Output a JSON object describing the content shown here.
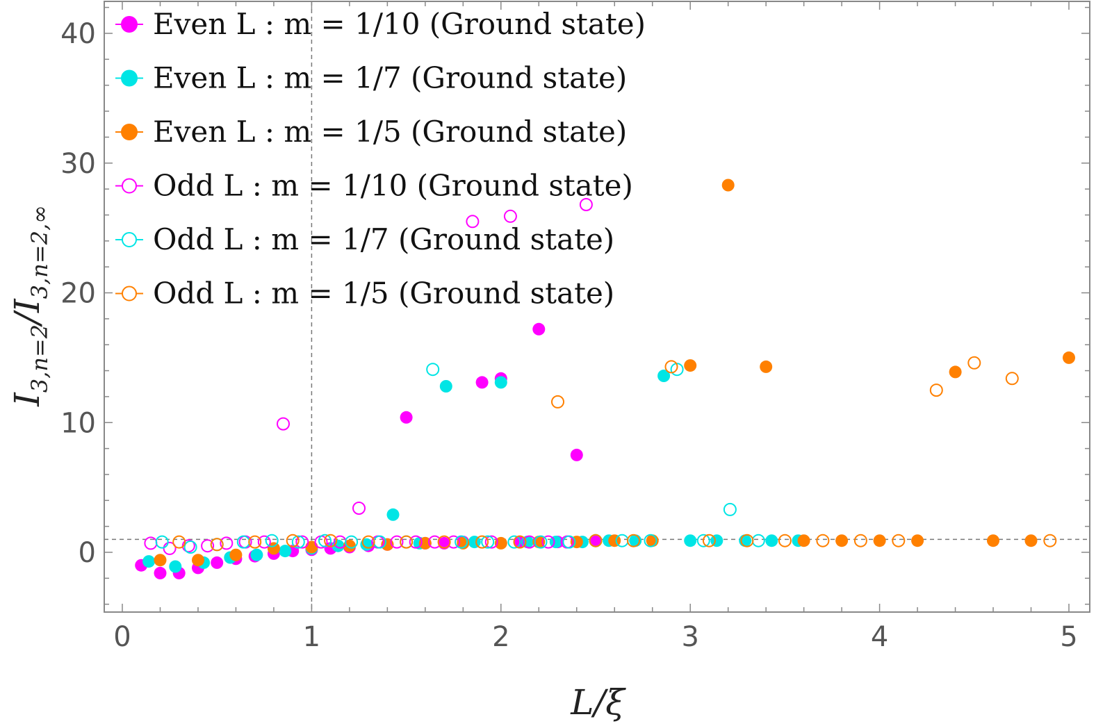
{
  "chart_data": {
    "type": "scatter",
    "title": "",
    "xlabel": "L/ξ",
    "ylabel": "I_{3,n=2}/I_{3,n=2,∞}",
    "xlim": [
      -0.1,
      5.05
    ],
    "ylim": [
      -4.3,
      42
    ],
    "xticks": [
      0,
      1,
      2,
      3,
      4,
      5
    ],
    "yticks": [
      0,
      10,
      20,
      30,
      40
    ],
    "reference_lines": {
      "x": 1,
      "y": 1
    },
    "legend_position": "top-left",
    "series": [
      {
        "name": "Even L : m = 1/10 (Ground state)",
        "legend_label": "Even L :  m = 1/10 (Ground state)",
        "color": "#ff00ff",
        "filled": true,
        "points": [
          [
            0.1,
            -1
          ],
          [
            0.2,
            -1.6
          ],
          [
            0.3,
            -1.6
          ],
          [
            0.4,
            -1.2
          ],
          [
            0.5,
            -0.8
          ],
          [
            0.6,
            -0.5
          ],
          [
            0.7,
            -0.3
          ],
          [
            0.8,
            -0.1
          ],
          [
            0.9,
            0.1
          ],
          [
            1.0,
            0.2
          ],
          [
            1.1,
            0.3
          ],
          [
            1.2,
            0.4
          ],
          [
            1.3,
            0.5
          ],
          [
            1.4,
            0.6
          ],
          [
            1.5,
            10.4
          ],
          [
            1.6,
            0.7
          ],
          [
            1.7,
            0.7
          ],
          [
            1.8,
            0.8
          ],
          [
            1.9,
            13.1
          ],
          [
            2.0,
            13.4
          ],
          [
            2.1,
            0.8
          ],
          [
            2.2,
            17.2
          ],
          [
            2.3,
            0.8
          ],
          [
            2.4,
            7.5
          ],
          [
            2.5,
            0.9
          ]
        ]
      },
      {
        "name": "Even L : m = 1/7 (Ground state)",
        "legend_label": "Even L :  m = 1/7 (Ground state)",
        "color": "#00e5e5",
        "filled": true,
        "points": [
          [
            0.14,
            -0.7
          ],
          [
            0.28,
            -1.1
          ],
          [
            0.43,
            -0.8
          ],
          [
            0.57,
            -0.4
          ],
          [
            0.71,
            -0.2
          ],
          [
            0.86,
            0.1
          ],
          [
            1.0,
            0.3
          ],
          [
            1.14,
            0.5
          ],
          [
            1.29,
            0.6
          ],
          [
            1.43,
            2.9
          ],
          [
            1.57,
            0.7
          ],
          [
            1.71,
            12.8
          ],
          [
            1.86,
            0.8
          ],
          [
            2.0,
            13.1
          ],
          [
            2.14,
            0.8
          ],
          [
            2.29,
            0.8
          ],
          [
            2.43,
            0.8
          ],
          [
            2.57,
            0.9
          ],
          [
            2.71,
            0.9
          ],
          [
            2.86,
            13.6
          ],
          [
            3.0,
            0.9
          ],
          [
            3.14,
            0.9
          ],
          [
            3.29,
            0.9
          ],
          [
            3.43,
            0.9
          ],
          [
            3.57,
            0.9
          ]
        ]
      },
      {
        "name": "Even L : m = 1/5 (Ground state)",
        "legend_label": "Even L :  m = 1/5 (Ground state)",
        "color": "#ff8000",
        "filled": true,
        "points": [
          [
            0.2,
            -0.6
          ],
          [
            0.4,
            -0.6
          ],
          [
            0.6,
            -0.2
          ],
          [
            0.8,
            0.3
          ],
          [
            1.0,
            0.4
          ],
          [
            1.2,
            0.5
          ],
          [
            1.4,
            0.6
          ],
          [
            1.6,
            0.7
          ],
          [
            1.8,
            0.7
          ],
          [
            2.0,
            0.7
          ],
          [
            2.2,
            0.8
          ],
          [
            2.4,
            0.8
          ],
          [
            2.6,
            0.9
          ],
          [
            2.8,
            0.9
          ],
          [
            3.0,
            14.4
          ],
          [
            3.2,
            28.3
          ],
          [
            3.4,
            14.3
          ],
          [
            3.6,
            0.9
          ],
          [
            3.8,
            0.9
          ],
          [
            4.0,
            0.9
          ],
          [
            4.2,
            0.9
          ],
          [
            4.4,
            13.9
          ],
          [
            4.6,
            0.9
          ],
          [
            4.8,
            0.9
          ],
          [
            5.0,
            15.0
          ]
        ]
      },
      {
        "name": "Odd L : m = 1/10 (Ground state)",
        "legend_label": "Odd L :  m = 1/10 (Ground state)",
        "color": "#ff00ff",
        "filled": false,
        "points": [
          [
            0.15,
            0.7
          ],
          [
            0.25,
            0.3
          ],
          [
            0.35,
            0.5
          ],
          [
            0.45,
            0.5
          ],
          [
            0.55,
            0.7
          ],
          [
            0.65,
            0.8
          ],
          [
            0.75,
            0.8
          ],
          [
            0.85,
            9.9
          ],
          [
            0.95,
            0.8
          ],
          [
            1.05,
            0.8
          ],
          [
            1.15,
            0.8
          ],
          [
            1.25,
            3.4
          ],
          [
            1.35,
            0.8
          ],
          [
            1.45,
            0.8
          ],
          [
            1.55,
            0.8
          ],
          [
            1.65,
            0.8
          ],
          [
            1.75,
            0.8
          ],
          [
            1.85,
            25.5
          ],
          [
            1.95,
            0.8
          ],
          [
            2.05,
            25.9
          ],
          [
            2.15,
            0.8
          ],
          [
            2.25,
            0.8
          ],
          [
            2.35,
            0.8
          ],
          [
            2.45,
            26.8
          ]
        ]
      },
      {
        "name": "Odd L : m = 1/7 (Ground state)",
        "legend_label": "Odd L :  m = 1/7 (Ground state)",
        "color": "#00e5e5",
        "filled": false,
        "points": [
          [
            0.21,
            0.8
          ],
          [
            0.36,
            0.4
          ],
          [
            0.5,
            0.6
          ],
          [
            0.64,
            0.8
          ],
          [
            0.79,
            0.9
          ],
          [
            0.93,
            0.8
          ],
          [
            1.07,
            0.9
          ],
          [
            1.21,
            0.8
          ],
          [
            1.36,
            0.8
          ],
          [
            1.5,
            0.8
          ],
          [
            1.64,
            14.1
          ],
          [
            1.79,
            0.8
          ],
          [
            1.93,
            0.8
          ],
          [
            2.07,
            0.8
          ],
          [
            2.21,
            0.8
          ],
          [
            2.36,
            0.8
          ],
          [
            2.5,
            0.9
          ],
          [
            2.64,
            0.9
          ],
          [
            2.79,
            0.9
          ],
          [
            2.93,
            14.1
          ],
          [
            3.07,
            0.9
          ],
          [
            3.21,
            3.3
          ],
          [
            3.36,
            0.9
          ]
        ]
      },
      {
        "name": "Odd L : m = 1/5 (Ground state)",
        "legend_label": "Odd L :  m = 1/5 (Ground state)",
        "color": "#ff8000",
        "filled": false,
        "points": [
          [
            0.3,
            0.8
          ],
          [
            0.5,
            0.6
          ],
          [
            0.7,
            0.8
          ],
          [
            0.9,
            0.9
          ],
          [
            1.1,
            0.9
          ],
          [
            1.3,
            0.8
          ],
          [
            1.5,
            0.8
          ],
          [
            1.7,
            0.8
          ],
          [
            1.9,
            0.8
          ],
          [
            2.1,
            0.8
          ],
          [
            2.3,
            11.6
          ],
          [
            2.5,
            0.9
          ],
          [
            2.7,
            0.9
          ],
          [
            2.9,
            14.3
          ],
          [
            3.1,
            0.9
          ],
          [
            3.3,
            0.9
          ],
          [
            3.5,
            0.9
          ],
          [
            3.7,
            0.9
          ],
          [
            3.9,
            0.9
          ],
          [
            4.1,
            0.9
          ],
          [
            4.3,
            12.5
          ],
          [
            4.5,
            14.6
          ],
          [
            4.7,
            13.4
          ],
          [
            4.9,
            0.9
          ]
        ]
      }
    ]
  }
}
